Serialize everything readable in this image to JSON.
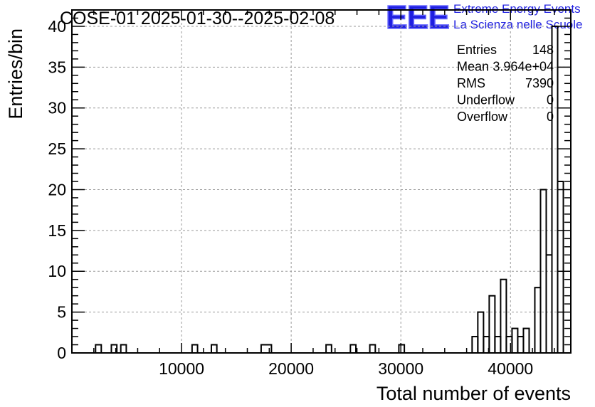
{
  "chart_data": {
    "type": "histogram",
    "title": "COSE-01 2025-01-30--2025-02-08",
    "xlabel": "Total number of events",
    "ylabel": "Entries/bin",
    "xlim": [
      0,
      45500
    ],
    "ylim": [
      0,
      42
    ],
    "grid": true,
    "bin_width": 520,
    "x_ticks": [
      {
        "value": 10000,
        "label": "10000"
      },
      {
        "value": 20000,
        "label": "20000"
      },
      {
        "value": 30000,
        "label": "30000"
      },
      {
        "value": 40000,
        "label": "40000"
      }
    ],
    "y_ticks": [
      {
        "value": 0,
        "label": "0"
      },
      {
        "value": 5,
        "label": "5"
      },
      {
        "value": 10,
        "label": "10"
      },
      {
        "value": 15,
        "label": "15"
      },
      {
        "value": 20,
        "label": "20"
      },
      {
        "value": 25,
        "label": "25"
      },
      {
        "value": 30,
        "label": "30"
      },
      {
        "value": 35,
        "label": "35"
      },
      {
        "value": 40,
        "label": "40"
      }
    ],
    "bins": [
      {
        "x0": 2160,
        "x1": 2680,
        "count": 1
      },
      {
        "x0": 3600,
        "x1": 4100,
        "count": 1
      },
      {
        "x0": 4460,
        "x1": 4960,
        "count": 1
      },
      {
        "x0": 10960,
        "x1": 11460,
        "count": 1
      },
      {
        "x0": 12720,
        "x1": 13220,
        "count": 1
      },
      {
        "x0": 17260,
        "x1": 18200,
        "count": 1
      },
      {
        "x0": 23180,
        "x1": 23680,
        "count": 1
      },
      {
        "x0": 25400,
        "x1": 25900,
        "count": 1
      },
      {
        "x0": 27170,
        "x1": 27670,
        "count": 1
      },
      {
        "x0": 29820,
        "x1": 30320,
        "count": 1
      },
      {
        "x0": 36500,
        "x1": 37020,
        "count": 2
      },
      {
        "x0": 37020,
        "x1": 37540,
        "count": 5
      },
      {
        "x0": 37540,
        "x1": 38060,
        "count": 2
      },
      {
        "x0": 38060,
        "x1": 38580,
        "count": 7
      },
      {
        "x0": 38580,
        "x1": 39100,
        "count": 2
      },
      {
        "x0": 39100,
        "x1": 39620,
        "count": 9
      },
      {
        "x0": 39620,
        "x1": 40140,
        "count": 2
      },
      {
        "x0": 40140,
        "x1": 40660,
        "count": 3
      },
      {
        "x0": 40660,
        "x1": 41180,
        "count": 2
      },
      {
        "x0": 41180,
        "x1": 41700,
        "count": 3
      },
      {
        "x0": 41700,
        "x1": 42220,
        "count": 0
      },
      {
        "x0": 42220,
        "x1": 42740,
        "count": 8
      },
      {
        "x0": 42740,
        "x1": 43260,
        "count": 20
      },
      {
        "x0": 43260,
        "x1": 43780,
        "count": 12
      },
      {
        "x0": 43780,
        "x1": 44300,
        "count": 40
      },
      {
        "x0": 44300,
        "x1": 44820,
        "count": 21
      }
    ]
  },
  "stats_box": {
    "rows": [
      {
        "label": "Entries",
        "value": "148"
      },
      {
        "label": "Mean",
        "value": "3.964e+04"
      },
      {
        "label": "RMS",
        "value": "7390"
      },
      {
        "label": "Underflow",
        "value": "0"
      },
      {
        "label": "Overflow",
        "value": "0"
      }
    ]
  },
  "logo": {
    "mark": "EEE",
    "line1": "Extreme Energy Events",
    "line2": "La Scienza nelle Scuole",
    "color": "#1f1fe0"
  }
}
